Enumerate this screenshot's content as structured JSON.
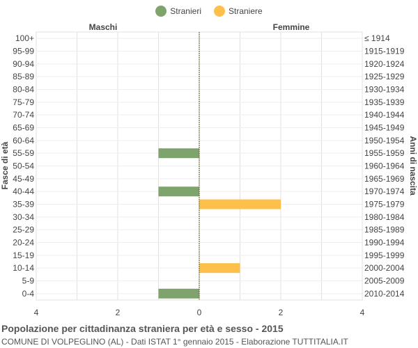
{
  "legend": {
    "males_label": "Stranieri",
    "females_label": "Straniere"
  },
  "colors": {
    "males": "#7fa36c",
    "females": "#fdc04a",
    "grid": "#e0e0e0",
    "axis_line": "#6b6b3a"
  },
  "header": {
    "males_title": "Maschi",
    "females_title": "Femmine"
  },
  "axes": {
    "left_label": "Fasce di età",
    "right_label": "Anni di nascita"
  },
  "footer": {
    "title": "Popolazione per cittadinanza straniera per età e sesso - 2015",
    "subtitle": "COMUNE DI VOLPEGLINO (AL) - Dati ISTAT 1° gennaio 2015 - Elaborazione TUTTITALIA.IT"
  },
  "chart_data": {
    "type": "bar",
    "orientation": "horizontal-pyramid",
    "categories": [
      "100+",
      "95-99",
      "90-94",
      "85-89",
      "80-84",
      "75-79",
      "70-74",
      "65-69",
      "60-64",
      "55-59",
      "50-54",
      "45-49",
      "40-44",
      "35-39",
      "30-34",
      "25-29",
      "20-24",
      "15-19",
      "10-14",
      "5-9",
      "0-4"
    ],
    "birth_years": [
      "≤ 1914",
      "1915-1919",
      "1920-1924",
      "1925-1929",
      "1930-1934",
      "1935-1939",
      "1940-1944",
      "1945-1949",
      "1950-1954",
      "1955-1959",
      "1960-1964",
      "1965-1969",
      "1970-1974",
      "1975-1979",
      "1980-1984",
      "1985-1989",
      "1990-1994",
      "1995-1999",
      "2000-2004",
      "2005-2009",
      "2010-2014"
    ],
    "series": [
      {
        "name": "Stranieri",
        "values": [
          0,
          0,
          0,
          0,
          0,
          0,
          0,
          0,
          0,
          1,
          0,
          0,
          1,
          0,
          0,
          0,
          0,
          0,
          0,
          0,
          1
        ]
      },
      {
        "name": "Straniere",
        "values": [
          0,
          0,
          0,
          0,
          0,
          0,
          0,
          0,
          0,
          0,
          0,
          0,
          0,
          2,
          0,
          0,
          0,
          0,
          1,
          0,
          0
        ]
      }
    ],
    "x_ticks": [
      "4",
      "2",
      "0",
      "2",
      "4"
    ],
    "xlim": [
      -4,
      4
    ],
    "grid": true,
    "legend_position": "top-center"
  }
}
